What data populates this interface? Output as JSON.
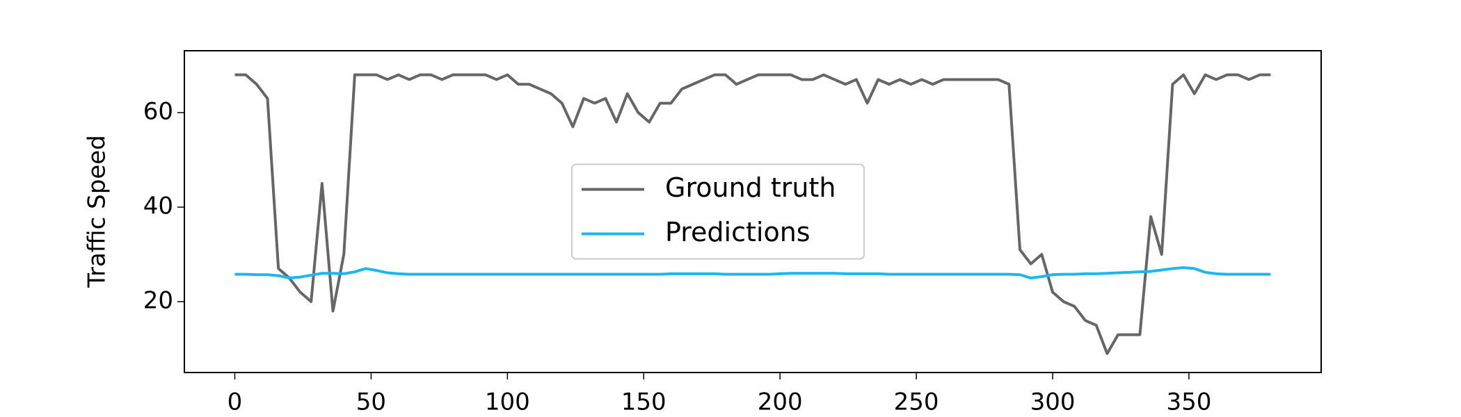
{
  "chart_data": {
    "type": "line",
    "y_label": "Traffic Speed",
    "x": [
      0,
      4,
      8,
      12,
      16,
      20,
      24,
      28,
      32,
      36,
      40,
      44,
      48,
      52,
      56,
      60,
      64,
      68,
      72,
      76,
      80,
      84,
      88,
      92,
      96,
      100,
      104,
      108,
      112,
      116,
      120,
      124,
      128,
      132,
      136,
      140,
      144,
      148,
      152,
      156,
      160,
      164,
      168,
      172,
      176,
      180,
      184,
      188,
      192,
      196,
      200,
      204,
      208,
      212,
      216,
      220,
      224,
      228,
      232,
      236,
      240,
      244,
      248,
      252,
      256,
      260,
      264,
      268,
      272,
      276,
      280,
      284,
      288,
      292,
      296,
      300,
      304,
      308,
      312,
      316,
      320,
      324,
      328,
      332,
      336,
      340,
      344,
      348,
      352,
      356,
      360,
      364,
      368,
      372,
      376,
      380
    ],
    "series": [
      {
        "name": "Ground truth",
        "color": "#666666",
        "values": [
          68,
          68,
          66,
          63,
          27,
          25,
          22,
          20,
          45,
          18,
          30,
          68,
          68,
          68,
          67,
          68,
          67,
          68,
          68,
          67,
          68,
          68,
          68,
          68,
          67,
          68,
          66,
          66,
          65,
          64,
          62,
          57,
          63,
          62,
          63,
          58,
          64,
          60,
          58,
          62,
          62,
          65,
          66,
          67,
          68,
          68,
          66,
          67,
          68,
          68,
          68,
          68,
          67,
          67,
          68,
          67,
          66,
          67,
          62,
          67,
          66,
          67,
          66,
          67,
          66,
          67,
          67,
          67,
          67,
          67,
          67,
          66,
          31,
          28,
          30,
          22,
          20,
          19,
          16,
          15,
          9,
          13,
          13,
          13,
          38,
          30,
          66,
          68,
          64,
          68,
          67,
          68,
          68,
          67,
          68,
          68
        ]
      },
      {
        "name": "Predictions",
        "color": "#1ab8ef",
        "values": [
          25.8,
          25.8,
          25.7,
          25.7,
          25.5,
          25,
          25.2,
          25.6,
          26,
          26,
          25.9,
          26.3,
          27,
          26.6,
          26.1,
          25.9,
          25.8,
          25.8,
          25.8,
          25.8,
          25.8,
          25.8,
          25.8,
          25.8,
          25.8,
          25.8,
          25.8,
          25.8,
          25.8,
          25.8,
          25.8,
          25.8,
          25.8,
          25.8,
          25.8,
          25.8,
          25.8,
          25.8,
          25.8,
          25.8,
          25.9,
          25.9,
          25.9,
          25.9,
          25.9,
          25.8,
          25.8,
          25.8,
          25.8,
          25.8,
          25.9,
          26,
          26,
          26,
          26,
          26,
          25.9,
          25.9,
          25.9,
          25.9,
          25.8,
          25.8,
          25.8,
          25.8,
          25.8,
          25.8,
          25.8,
          25.8,
          25.8,
          25.8,
          25.8,
          25.8,
          25.7,
          25,
          25.3,
          25.7,
          25.8,
          25.8,
          25.9,
          25.9,
          26,
          26.1,
          26.2,
          26.3,
          26.4,
          26.7,
          27,
          27.2,
          27,
          26.2,
          25.9,
          25.8,
          25.8,
          25.8,
          25.8,
          25.8
        ]
      }
    ],
    "xlim": [
      -18.5,
      398.5
    ],
    "ylim": [
      5,
      73.1
    ],
    "xticks": [
      0,
      50,
      100,
      150,
      200,
      250,
      300,
      350
    ],
    "yticks": [
      20,
      40,
      60
    ],
    "legend": "center"
  }
}
